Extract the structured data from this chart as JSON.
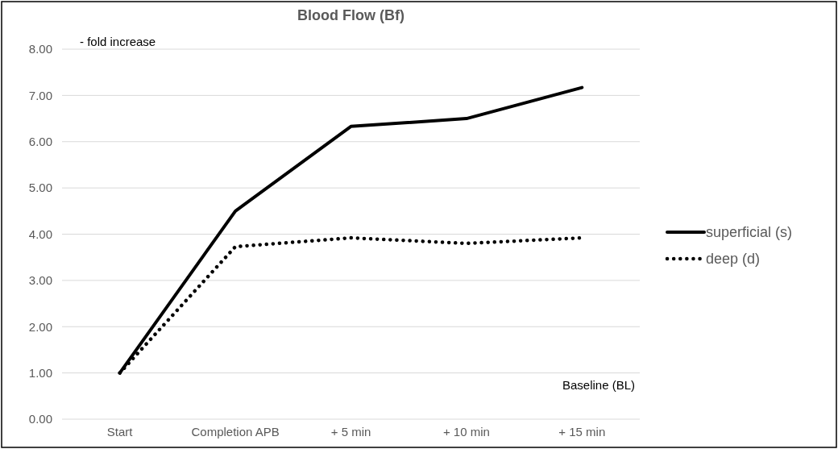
{
  "chart_data": {
    "type": "line",
    "title": "Blood Flow (Bf)",
    "ylabel": "- fold increase",
    "categories": [
      "Start",
      "Completion APB",
      "+ 5 min",
      "+ 10 min",
      "+ 15 min"
    ],
    "series": [
      {
        "name": "superficial (s)",
        "color": "#000000",
        "values": [
          1.0,
          4.5,
          6.33,
          6.5,
          7.17
        ],
        "line_style": "solid"
      },
      {
        "name": "deep (d)",
        "color": "#000000",
        "values": [
          1.0,
          3.73,
          3.92,
          3.8,
          3.92
        ],
        "line_style": "dotted"
      }
    ],
    "ylim": [
      0,
      8
    ],
    "yticks": [
      {
        "value": 0,
        "label": "0.00"
      },
      {
        "value": 1,
        "label": "1.00"
      },
      {
        "value": 2,
        "label": "2.00"
      },
      {
        "value": 3,
        "label": "3.00"
      },
      {
        "value": 4,
        "label": "4.00"
      },
      {
        "value": 5,
        "label": "5.00"
      },
      {
        "value": 6,
        "label": "6.00"
      },
      {
        "value": 7,
        "label": "7.00"
      },
      {
        "value": 8,
        "label": "8.00"
      }
    ],
    "grid": "y",
    "legend": "right",
    "marker": "none",
    "annotations": [
      "Baseline (BL)"
    ]
  }
}
